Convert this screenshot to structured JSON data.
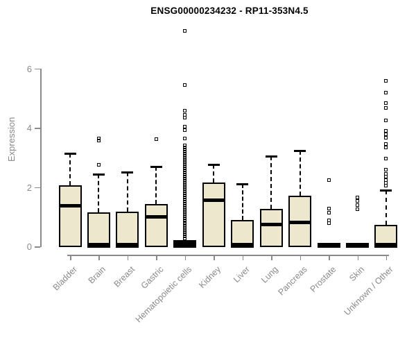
{
  "header": {
    "title": "ENSG00000234232 - RP11-353N4.5"
  },
  "chart_data": {
    "type": "box",
    "title": "ENSG00000234232 - RP11-353N4.5",
    "xlabel": "",
    "ylabel": "Expression",
    "ylim": [
      0,
      7.5
    ],
    "yticks": [
      0,
      2,
      4,
      6
    ],
    "grid": false,
    "legend": "none",
    "colors": {
      "box_fill": "#EDE7CD",
      "box_stroke": "#000000",
      "axis": "#8a8a8a",
      "title_text": "#000000",
      "background": "#ffffff"
    },
    "categories": [
      "Bladder",
      "Brain",
      "Breast",
      "Gastric",
      "Hematopoietic cells",
      "Kidney",
      "Liver",
      "Lung",
      "Pancreas",
      "Prostate",
      "Skin",
      "Unknown / Other"
    ],
    "boxes": [
      {
        "label": "Bladder",
        "collapsed": false,
        "q1": 0.02,
        "median": 1.38,
        "q3": 2.06,
        "whisker_high": 3.15,
        "outliers": []
      },
      {
        "label": "Brain",
        "collapsed": false,
        "q1": 0.0,
        "median": 0.07,
        "q3": 1.14,
        "whisker_high": 2.44,
        "outliers": [
          2.76,
          3.57,
          3.64
        ]
      },
      {
        "label": "Breast",
        "collapsed": false,
        "q1": 0.0,
        "median": 0.05,
        "q3": 1.17,
        "whisker_high": 2.51,
        "outliers": []
      },
      {
        "label": "Gastric",
        "collapsed": false,
        "q1": 0.02,
        "median": 1.0,
        "q3": 1.43,
        "whisker_high": 2.7,
        "outliers": [
          3.61
        ]
      },
      {
        "label": "Hematopoietic cells",
        "collapsed": true,
        "q1": 0.0,
        "median": 0.0,
        "q3": 0.22,
        "whisker_high": null,
        "outliers": [
          0.26,
          0.33,
          0.4,
          0.47,
          0.54,
          0.61,
          0.68,
          0.75,
          0.82,
          0.89,
          0.96,
          1.03,
          1.1,
          1.17,
          1.24,
          1.31,
          1.38,
          1.45,
          1.52,
          1.59,
          1.66,
          1.73,
          1.8,
          1.87,
          1.94,
          2.01,
          2.08,
          2.15,
          2.22,
          2.29,
          2.36,
          2.43,
          2.5,
          2.57,
          2.64,
          2.71,
          2.78,
          2.85,
          2.92,
          2.99,
          3.06,
          3.13,
          3.2,
          3.27,
          3.34,
          3.41,
          3.64,
          3.92,
          4.04,
          4.34,
          4.44,
          4.58,
          5.44,
          7.28
        ]
      },
      {
        "label": "Kidney",
        "collapsed": false,
        "q1": 0.02,
        "median": 1.56,
        "q3": 2.16,
        "whisker_high": 2.77,
        "outliers": []
      },
      {
        "label": "Liver",
        "collapsed": false,
        "q1": 0.0,
        "median": 0.05,
        "q3": 0.9,
        "whisker_high": 2.12,
        "outliers": []
      },
      {
        "label": "Lung",
        "collapsed": false,
        "q1": 0.02,
        "median": 0.73,
        "q3": 1.27,
        "whisker_high": 3.05,
        "outliers": []
      },
      {
        "label": "Pancreas",
        "collapsed": false,
        "q1": 0.02,
        "median": 0.8,
        "q3": 1.7,
        "whisker_high": 3.24,
        "outliers": []
      },
      {
        "label": "Prostate",
        "collapsed": true,
        "q1": 0.0,
        "median": 0.0,
        "q3": 0.12,
        "whisker_high": null,
        "outliers": [
          0.79,
          0.89,
          1.14,
          1.28,
          2.24
        ]
      },
      {
        "label": "Skin",
        "collapsed": true,
        "q1": 0.0,
        "median": 0.0,
        "q3": 0.12,
        "whisker_high": null,
        "outliers": [
          1.26,
          1.4,
          1.54,
          1.66
        ]
      },
      {
        "label": "Unknown / Other",
        "collapsed": false,
        "q1": 0.0,
        "median": 0.07,
        "q3": 0.73,
        "whisker_high": 1.9,
        "outliers": [
          2.06,
          2.15,
          2.23,
          2.35,
          2.44,
          2.58,
          2.97,
          3.33,
          3.46,
          3.67,
          3.78,
          3.9,
          4.26,
          4.67,
          4.84,
          5.19,
          5.6
        ]
      }
    ]
  }
}
